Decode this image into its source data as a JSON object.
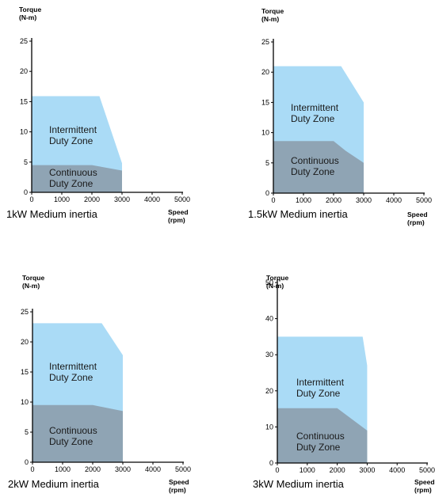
{
  "colors": {
    "intermittent": "#aadbf6",
    "continuous": "#8fa4b4",
    "axis": "#000000"
  },
  "chart_data": [
    {
      "type": "area",
      "caption": "1kW Medium inertia",
      "ylabel": [
        "Torque",
        "(N-m)"
      ],
      "xlabel": [
        "Speed",
        "(rpm)"
      ],
      "ylim": [
        0,
        25
      ],
      "yticks": [
        0,
        5,
        10,
        15,
        20,
        25
      ],
      "xlim": [
        0,
        5000
      ],
      "xticks": [
        0,
        1000,
        2000,
        3000,
        4000,
        5000
      ],
      "series": [
        {
          "name": "Intermittent Duty Zone",
          "label_lines": [
            "Intermittent",
            "Duty Zone"
          ],
          "points": [
            [
              0,
              15.9
            ],
            [
              2250,
              15.9
            ],
            [
              3000,
              4.8
            ],
            [
              3000,
              3.6
            ]
          ]
        },
        {
          "name": "Continuous Duty Zone",
          "label_lines": [
            "Continuous",
            "Duty Zone"
          ],
          "points": [
            [
              0,
              4.5
            ],
            [
              2000,
              4.5
            ],
            [
              3000,
              3.6
            ]
          ]
        }
      ]
    },
    {
      "type": "area",
      "caption": "1.5kW Medium inertia",
      "ylabel": [
        "Torque",
        "(N-m)"
      ],
      "xlabel": [
        "Speed",
        "(rpm)"
      ],
      "ylim": [
        0,
        25
      ],
      "yticks": [
        0,
        5,
        10,
        15,
        20,
        25
      ],
      "xlim": [
        0,
        5000
      ],
      "xticks": [
        0,
        1000,
        2000,
        3000,
        4000,
        5000
      ],
      "series": [
        {
          "name": "Intermittent Duty Zone",
          "label_lines": [
            "Intermittent",
            "Duty Zone"
          ],
          "points": [
            [
              0,
              21.0
            ],
            [
              2250,
              21.0
            ],
            [
              3000,
              15.0
            ],
            [
              3000,
              5.0
            ]
          ]
        },
        {
          "name": "Continuous Duty Zone",
          "label_lines": [
            "Continuous",
            "Duty Zone"
          ],
          "points": [
            [
              0,
              8.6
            ],
            [
              2000,
              8.6
            ],
            [
              2400,
              7.0
            ],
            [
              3000,
              5.0
            ]
          ]
        }
      ]
    },
    {
      "type": "area",
      "caption": "2kW  Medium inertia",
      "ylabel": [
        "Torque",
        "(N-m)"
      ],
      "xlabel": [
        "Speed",
        "(rpm)"
      ],
      "ylim": [
        0,
        25
      ],
      "yticks": [
        0,
        5,
        10,
        15,
        20,
        25
      ],
      "xlim": [
        0,
        5000
      ],
      "xticks": [
        0,
        1000,
        2000,
        3000,
        4000,
        5000
      ],
      "series": [
        {
          "name": "Intermittent Duty Zone",
          "label_lines": [
            "Intermittent",
            "Duty Zone"
          ],
          "points": [
            [
              0,
              23.1
            ],
            [
              2300,
              23.1
            ],
            [
              3000,
              17.8
            ],
            [
              3000,
              8.5
            ]
          ]
        },
        {
          "name": "Continuous Duty Zone",
          "label_lines": [
            "Continuous",
            "Duty Zone"
          ],
          "points": [
            [
              0,
              9.5
            ],
            [
              2000,
              9.5
            ],
            [
              3000,
              8.5
            ]
          ]
        }
      ]
    },
    {
      "type": "area",
      "caption": "3kW Medium inertia",
      "ylabel": [
        "Torque",
        "(N-m)"
      ],
      "xlabel": [
        "Speed",
        "(rpm)"
      ],
      "ylim": [
        0,
        50
      ],
      "yticks": [
        0,
        10,
        20,
        30,
        40,
        50
      ],
      "xlim": [
        0,
        5000
      ],
      "xticks": [
        0,
        1000,
        2000,
        3000,
        4000,
        5000
      ],
      "series": [
        {
          "name": "Intermittent Duty Zone",
          "label_lines": [
            "Intermittent",
            "Duty Zone"
          ],
          "points": [
            [
              0,
              35.0
            ],
            [
              2850,
              35.0
            ],
            [
              3000,
              27.0
            ],
            [
              3000,
              9.0
            ]
          ]
        },
        {
          "name": "Continuous Duty Zone",
          "label_lines": [
            "Continuous",
            "Duty Zone"
          ],
          "points": [
            [
              0,
              15.2
            ],
            [
              2000,
              15.2
            ],
            [
              3000,
              9.0
            ]
          ]
        }
      ]
    }
  ]
}
